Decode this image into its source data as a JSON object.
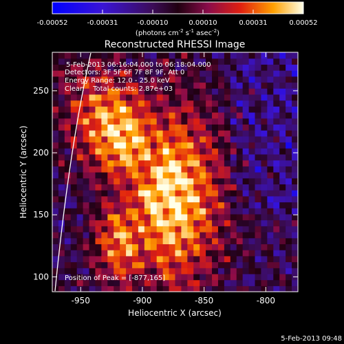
{
  "colorbar": {
    "ticks": [
      "-0.00052",
      "-0.00031",
      "-0.00010",
      "0.00010",
      "0.00031",
      "0.00052"
    ],
    "units_prefix": "(photons cm",
    "units_sup1": "-2",
    "units_mid1": " s",
    "units_sup2": "-1",
    "units_mid2": " asec",
    "units_sup3": "-2",
    "units_suffix": ")"
  },
  "chart_data": {
    "type": "heatmap",
    "title": "Reconstructed RHESSI Image",
    "xlabel": "Heliocentric X (arcsec)",
    "ylabel": "Heliocentric Y (arcsec)",
    "xlim": [
      -973,
      -774
    ],
    "ylim": [
      88,
      281
    ],
    "x_ticks": [
      "-950",
      "-900",
      "-850",
      "-800"
    ],
    "y_ticks": [
      "100",
      "150",
      "200",
      "250"
    ],
    "x_tick_values": [
      -950,
      -900,
      -850,
      -800
    ],
    "y_tick_values": [
      100,
      150,
      200,
      250
    ],
    "annotations": {
      "time_range": "5-Feb-2013 06:16:04.000 to 06:18:04.000",
      "detectors": "Detectors: 3F 5F 6F 7F 8F 9F, Att 0",
      "energy": "Energy Range: 12.0 - 25.0 keV",
      "clean": "Clean    Total counts: 2.87e+03",
      "peak": "Position of Peak = [-877,165]"
    },
    "peak_position": [
      -877,
      165
    ],
    "value_range": [
      -0.00052,
      0.00052
    ],
    "grid": false
  },
  "footer": {
    "timestamp": "5-Feb-2013 09:48"
  },
  "colors": {
    "background": "#000000",
    "text": "#ffffff",
    "limb": "#ffffff"
  }
}
